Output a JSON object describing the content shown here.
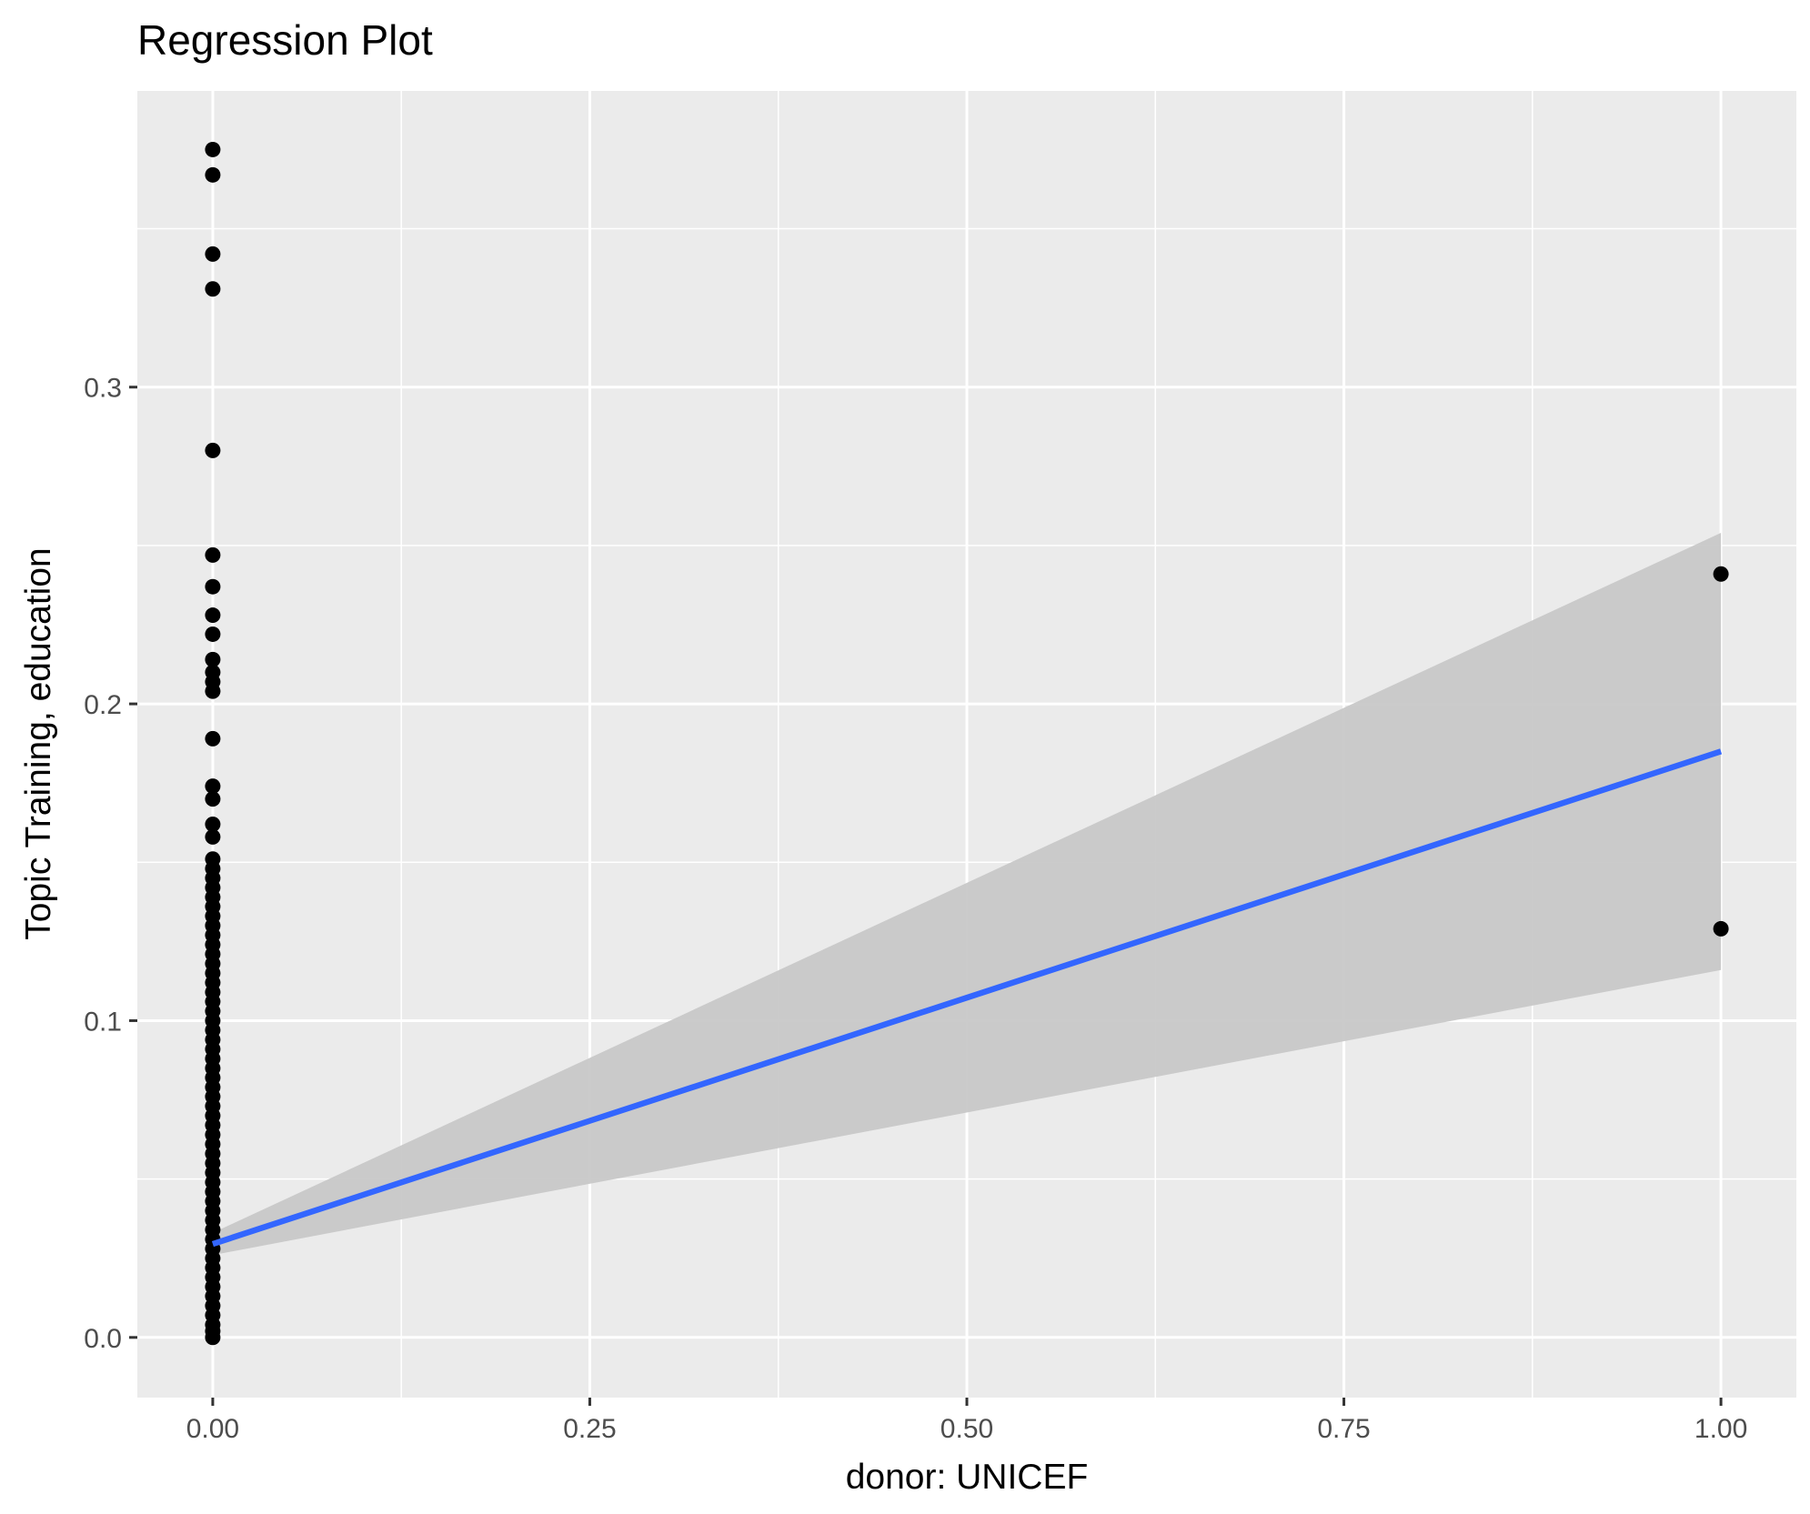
{
  "chart_data": {
    "type": "scatter",
    "title": "Regression Plot",
    "xlabel": "donor: UNICEF",
    "ylabel": "Topic Training, education",
    "xlim": [
      -0.05,
      1.05
    ],
    "ylim": [
      -0.019,
      0.3935
    ],
    "x_ticks": [
      0.0,
      0.25,
      0.5,
      0.75,
      1.0
    ],
    "x_tick_labels": [
      "0.00",
      "0.25",
      "0.50",
      "0.75",
      "1.00"
    ],
    "y_ticks": [
      0.0,
      0.1,
      0.2,
      0.3
    ],
    "y_tick_labels": [
      "0.0",
      "0.1",
      "0.2",
      "0.3"
    ],
    "grid": true,
    "colors": {
      "panel_background": "#ebebeb",
      "grid": "#ffffff",
      "points": "#000000",
      "fit_line": "#3366ff",
      "confidence_band": "#c8c8c8"
    },
    "points": [
      {
        "x": 0,
        "y": 0.375
      },
      {
        "x": 0,
        "y": 0.367
      },
      {
        "x": 0,
        "y": 0.342
      },
      {
        "x": 0,
        "y": 0.331
      },
      {
        "x": 0,
        "y": 0.28
      },
      {
        "x": 0,
        "y": 0.247
      },
      {
        "x": 0,
        "y": 0.237
      },
      {
        "x": 0,
        "y": 0.228
      },
      {
        "x": 0,
        "y": 0.222
      },
      {
        "x": 0,
        "y": 0.214
      },
      {
        "x": 0,
        "y": 0.21
      },
      {
        "x": 0,
        "y": 0.207
      },
      {
        "x": 0,
        "y": 0.204
      },
      {
        "x": 0,
        "y": 0.189
      },
      {
        "x": 0,
        "y": 0.174
      },
      {
        "x": 0,
        "y": 0.17
      },
      {
        "x": 0,
        "y": 0.162
      },
      {
        "x": 0,
        "y": 0.158
      },
      {
        "x": 0,
        "y": 0.151
      },
      {
        "x": 0,
        "y": 0.148
      },
      {
        "x": 0,
        "y": 0.145
      },
      {
        "x": 0,
        "y": 0.142
      },
      {
        "x": 0,
        "y": 0.139
      },
      {
        "x": 0,
        "y": 0.136
      },
      {
        "x": 0,
        "y": 0.133
      },
      {
        "x": 0,
        "y": 0.13
      },
      {
        "x": 0,
        "y": 0.127
      },
      {
        "x": 0,
        "y": 0.124
      },
      {
        "x": 0,
        "y": 0.121
      },
      {
        "x": 0,
        "y": 0.118
      },
      {
        "x": 0,
        "y": 0.115
      },
      {
        "x": 0,
        "y": 0.112
      },
      {
        "x": 0,
        "y": 0.109
      },
      {
        "x": 0,
        "y": 0.106
      },
      {
        "x": 0,
        "y": 0.103
      },
      {
        "x": 0,
        "y": 0.1
      },
      {
        "x": 0,
        "y": 0.097
      },
      {
        "x": 0,
        "y": 0.094
      },
      {
        "x": 0,
        "y": 0.091
      },
      {
        "x": 0,
        "y": 0.088
      },
      {
        "x": 0,
        "y": 0.085
      },
      {
        "x": 0,
        "y": 0.082
      },
      {
        "x": 0,
        "y": 0.079
      },
      {
        "x": 0,
        "y": 0.076
      },
      {
        "x": 0,
        "y": 0.073
      },
      {
        "x": 0,
        "y": 0.07
      },
      {
        "x": 0,
        "y": 0.067
      },
      {
        "x": 0,
        "y": 0.064
      },
      {
        "x": 0,
        "y": 0.061
      },
      {
        "x": 0,
        "y": 0.058
      },
      {
        "x": 0,
        "y": 0.055
      },
      {
        "x": 0,
        "y": 0.052
      },
      {
        "x": 0,
        "y": 0.049
      },
      {
        "x": 0,
        "y": 0.046
      },
      {
        "x": 0,
        "y": 0.043
      },
      {
        "x": 0,
        "y": 0.04
      },
      {
        "x": 0,
        "y": 0.037
      },
      {
        "x": 0,
        "y": 0.034
      },
      {
        "x": 0,
        "y": 0.031
      },
      {
        "x": 0,
        "y": 0.028
      },
      {
        "x": 0,
        "y": 0.025
      },
      {
        "x": 0,
        "y": 0.022
      },
      {
        "x": 0,
        "y": 0.019
      },
      {
        "x": 0,
        "y": 0.016
      },
      {
        "x": 0,
        "y": 0.013
      },
      {
        "x": 0,
        "y": 0.01
      },
      {
        "x": 0,
        "y": 0.007
      },
      {
        "x": 0,
        "y": 0.004
      },
      {
        "x": 0,
        "y": 0.002
      },
      {
        "x": 0,
        "y": 0.0
      },
      {
        "x": 1,
        "y": 0.241
      },
      {
        "x": 1,
        "y": 0.129
      }
    ],
    "fit_line": {
      "x": [
        0,
        1
      ],
      "y": [
        0.0295,
        0.185
      ]
    },
    "confidence_band": {
      "x": [
        0,
        1
      ],
      "lower": [
        0.026,
        0.116
      ],
      "upper": [
        0.033,
        0.254
      ]
    }
  }
}
